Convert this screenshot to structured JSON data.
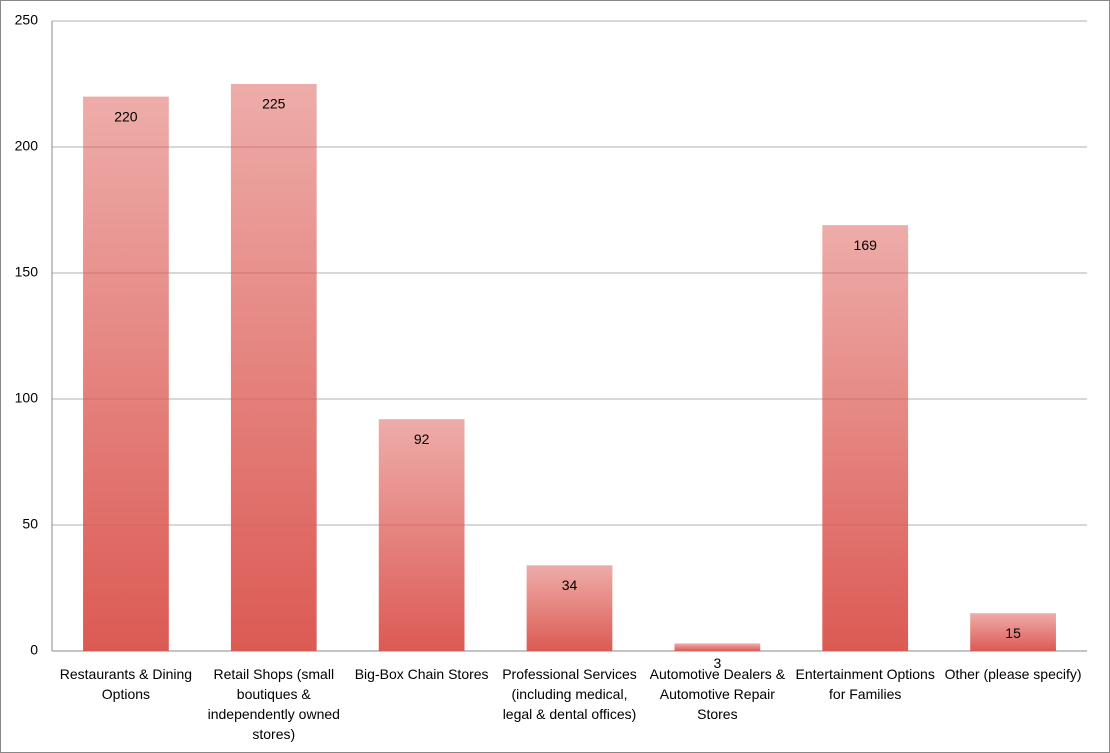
{
  "chart_data": {
    "type": "bar",
    "categories": [
      "Restaurants & Dining Options",
      "Retail Shops (small boutiques & independently owned stores)",
      "Big-Box Chain Stores",
      "Professional Services (including medical, legal & dental offices)",
      "Automotive Dealers & Automotive Repair Stores",
      "Entertainment Options for Families",
      "Other (please specify)"
    ],
    "values": [
      220,
      225,
      92,
      34,
      3,
      169,
      15
    ],
    "color": "#dc5a54",
    "ylim": [
      0,
      250
    ],
    "yticks": [
      0,
      50,
      100,
      150,
      200,
      250
    ],
    "grid": true
  }
}
